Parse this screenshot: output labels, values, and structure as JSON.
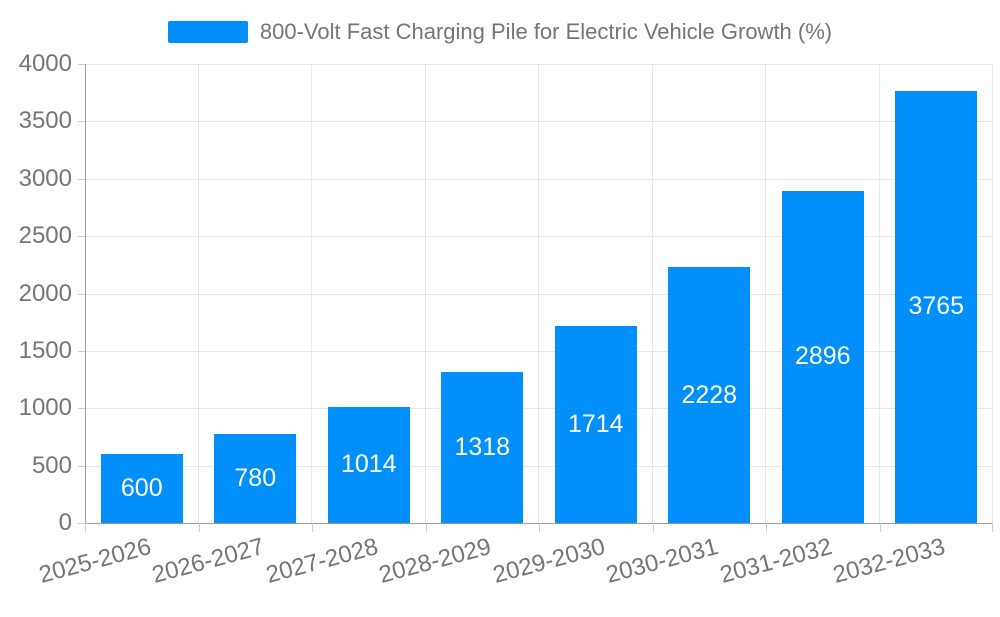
{
  "chart_data": {
    "type": "bar",
    "title": "800-Volt Fast Charging Pile for Electric Vehicle Growth (%)",
    "series_name": "800-Volt Fast Charging Pile for Electric Vehicle Growth (%)",
    "categories": [
      "2025-2026",
      "2026-2027",
      "2027-2028",
      "2028-2029",
      "2029-2030",
      "2030-2031",
      "2031-2032",
      "2032-2033"
    ],
    "values": [
      600,
      780,
      1014,
      1318,
      1714,
      2228,
      2896,
      3765
    ],
    "xlabel": "",
    "ylabel": "",
    "ylim": [
      0,
      4000
    ],
    "ytick_step": 500,
    "yticks": [
      0,
      500,
      1000,
      1500,
      2000,
      2500,
      3000,
      3500,
      4000
    ],
    "grid": true,
    "legend_position": "top",
    "x_label_rotation_deg": -15,
    "value_label_position": "inside-center"
  },
  "colors": {
    "bar": "#008FFB",
    "bar_value_label": "#FFFFFF",
    "axis_label": "#757575",
    "legend_label": "#757575",
    "gridline": "#E7E7E7",
    "axis_line": "#9B9B9B",
    "tick": "#CDCDCD",
    "background": "#FFFFFF"
  }
}
